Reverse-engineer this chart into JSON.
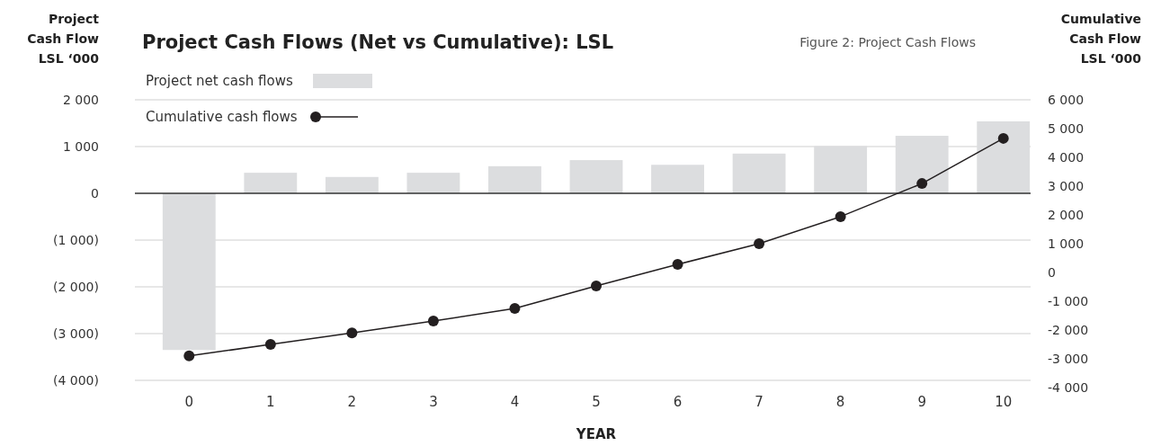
{
  "chart_data": {
    "type": "bar",
    "title": "Project Cash Flows (Net vs Cumulative): LSL",
    "subtitle": "Figure 2: Project Cash Flows",
    "xlabel": "YEAR",
    "ylabel": "Project Cash Flow LSL ‘000",
    "y2label": "Cumulative Cash Flow LSL ‘000",
    "categories": [
      "0",
      "1",
      "2",
      "3",
      "4",
      "5",
      "6",
      "7",
      "8",
      "9",
      "10"
    ],
    "series": [
      {
        "name": "Project net cash flows",
        "color": "#dcdddf",
        "values": [
          -3350,
          440,
          350,
          440,
          580,
          710,
          610,
          850,
          1010,
          1230,
          1540
        ]
      },
      {
        "name": "Cumulative cash flows",
        "type": "line",
        "axis": "y2",
        "color": "#231f20",
        "marker": "circle",
        "values": [
          -2900,
          -2500,
          -2100,
          -1690,
          -1250,
          -470,
          280,
          1000,
          1940,
          3090,
          4660
        ]
      }
    ],
    "ylim": [
      -4000,
      2000
    ],
    "yticks": [
      {
        "value": 2000,
        "label": "2 000"
      },
      {
        "value": 1000,
        "label": "1 000"
      },
      0,
      {
        "value": -1000,
        "label": "(1 000)"
      },
      {
        "value": -2000,
        "label": "(2 000)"
      },
      {
        "value": -3000,
        "label": "(3 000)"
      },
      {
        "value": -4000,
        "label": "(4 000)"
      }
    ],
    "y2lim": [
      -4000,
      6000
    ],
    "y2ticks": [
      {
        "value": 6000,
        "label": "6 000"
      },
      {
        "value": 5000,
        "label": "5 000"
      },
      {
        "value": 4000,
        "label": "4 000"
      },
      {
        "value": 3000,
        "label": "3 000"
      },
      {
        "value": 2000,
        "label": "2 000"
      },
      {
        "value": 1000,
        "label": "1 000"
      },
      0,
      {
        "value": -1000,
        "label": "-1 000"
      },
      {
        "value": -2000,
        "label": "-2 000"
      },
      {
        "value": -3000,
        "label": "-3 000"
      },
      {
        "value": -4000,
        "label": "-4 000"
      }
    ],
    "grid": "y",
    "legend": "top left"
  }
}
